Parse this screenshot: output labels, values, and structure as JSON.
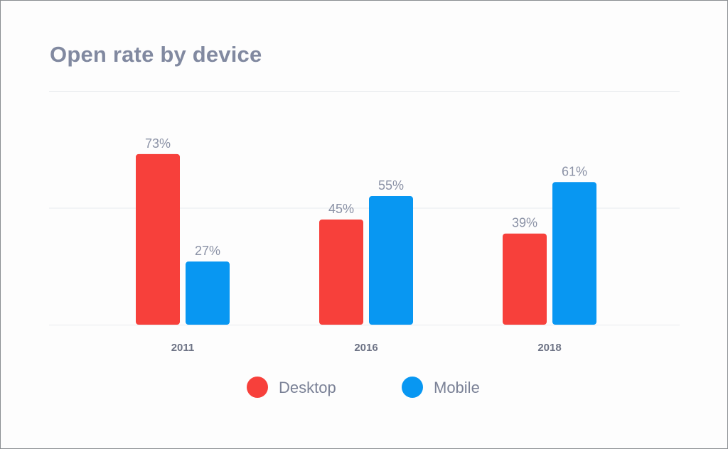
{
  "chart_data": {
    "type": "bar",
    "title": "Open rate by device",
    "categories": [
      "2011",
      "2016",
      "2018"
    ],
    "series": [
      {
        "name": "Desktop",
        "color": "#f7403b",
        "values": [
          73,
          45,
          39
        ],
        "labels": [
          "73%",
          "45%",
          "39%"
        ]
      },
      {
        "name": "Mobile",
        "color": "#0897f2",
        "values": [
          27,
          55,
          61
        ],
        "labels": [
          "27%",
          "55%",
          "61%"
        ]
      }
    ],
    "ylim": [
      0,
      100
    ],
    "grid": true,
    "legend_position": "bottom-center"
  }
}
